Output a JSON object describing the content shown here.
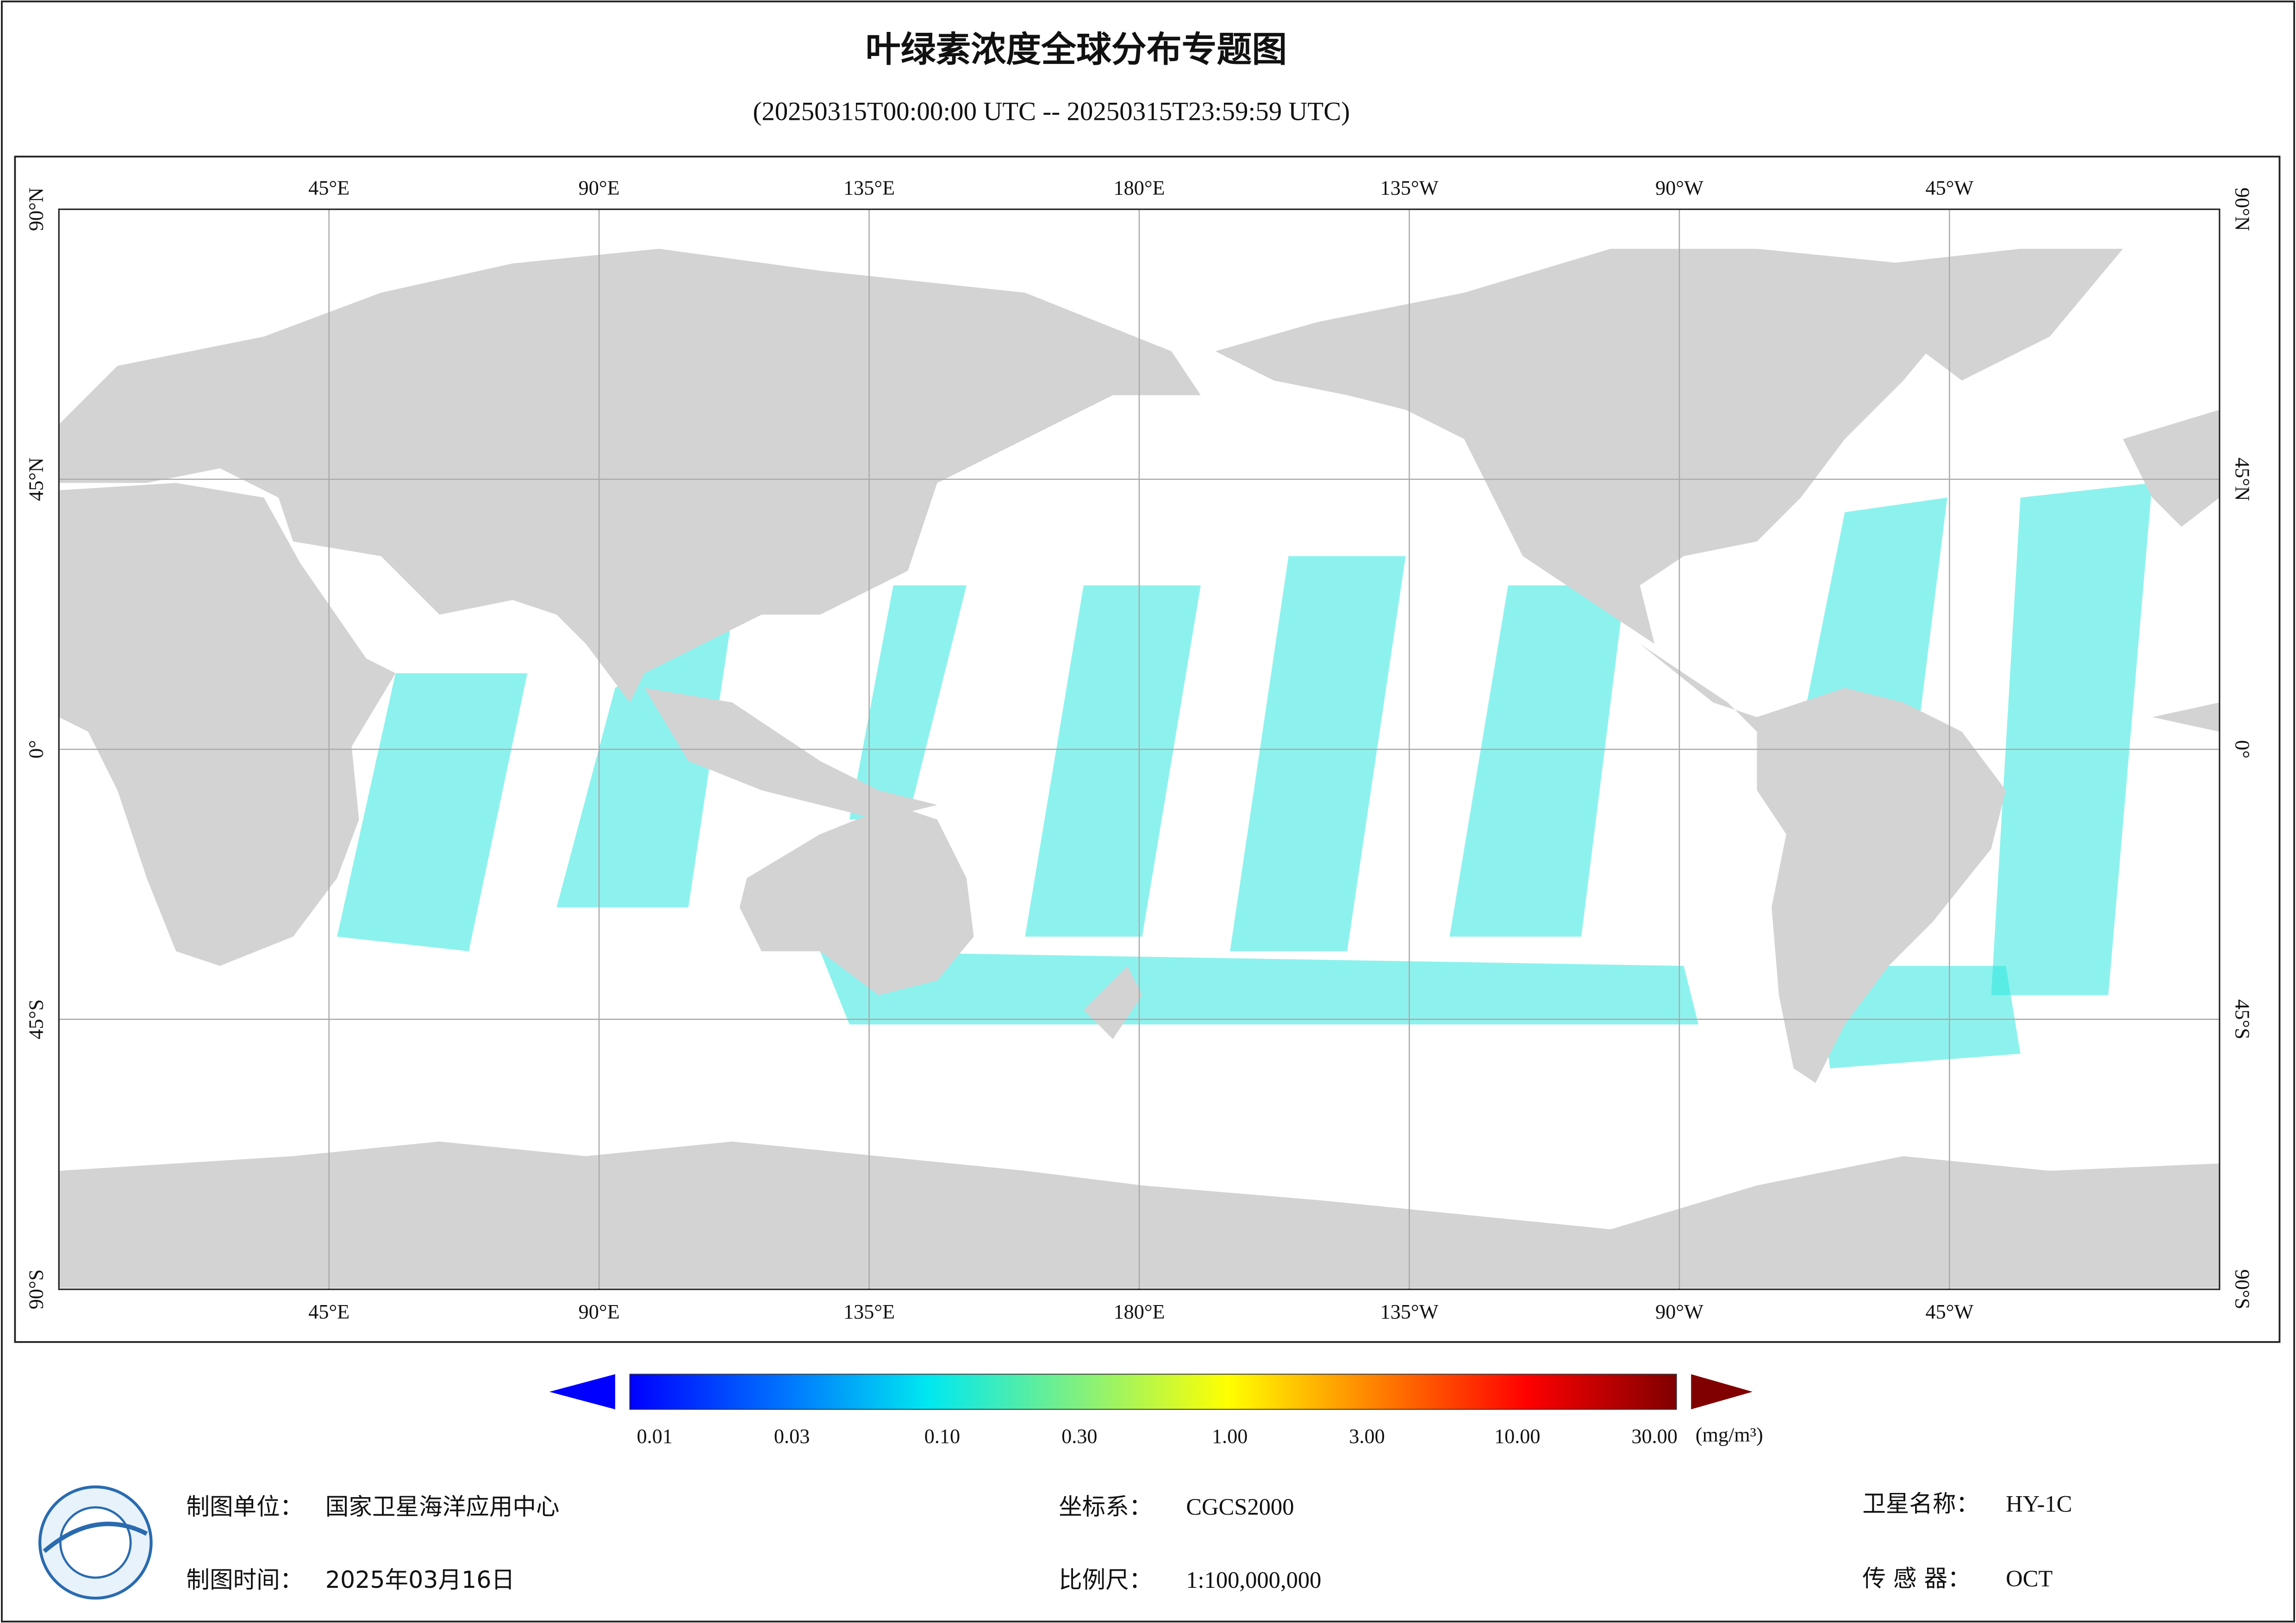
{
  "map": {
    "title": "叶绿素浓度全球分布专题图",
    "subtitle": "(20250315T00:00:00 UTC -- 20250315T23:59:59 UTC)",
    "xlim": [
      0,
      360
    ],
    "ylim": [
      -90,
      90
    ],
    "lon_ticks": [
      {
        "value": 45,
        "label": "45°E"
      },
      {
        "value": 90,
        "label": "90°E"
      },
      {
        "value": 135,
        "label": "135°E"
      },
      {
        "value": 180,
        "label": "180°E"
      },
      {
        "value": 225,
        "label": "135°W"
      },
      {
        "value": 270,
        "label": "90°W"
      },
      {
        "value": 315,
        "label": "45°W"
      }
    ],
    "lat_ticks": [
      {
        "value": 90,
        "label": "90°N"
      },
      {
        "value": 45,
        "label": "45°N"
      },
      {
        "value": 0,
        "label": "0°"
      },
      {
        "value": -45,
        "label": "45°S"
      },
      {
        "value": -90,
        "label": "90°S"
      }
    ],
    "grid": true,
    "colorbar": {
      "log": true,
      "range": [
        0.01,
        30
      ],
      "unit": "(mg/m³)",
      "colors": [
        "#0000ff",
        "#0070ff",
        "#00e8f0",
        "#80f080",
        "#ffff00",
        "#ff8000",
        "#ff0000",
        "#800000"
      ],
      "ticks": [
        0.01,
        0.03,
        {
          "value": 0.1,
          "label": "0.10"
        },
        {
          "value": 0.3,
          "label": "0.30"
        },
        {
          "value": 1,
          "label": "1.00"
        },
        {
          "value": 3,
          "label": "3.00"
        },
        {
          "value": 10,
          "label": "10.00"
        },
        {
          "value": 30,
          "label": "30.00"
        }
      ]
    }
  },
  "footer": {
    "unit": {
      "label": "制图单位：",
      "value": "国家卫星海洋应用中心"
    },
    "time": {
      "label": "制图时间：",
      "value": "2025年03月16日"
    },
    "crs": {
      "label": "坐标系：",
      "value": "CGCS2000"
    },
    "scale": {
      "label": "比例尺：",
      "value": "1:100,000,000"
    },
    "satellite": {
      "label": "卫星名称：",
      "value": "HY-1C"
    },
    "sensor": {
      "label": "传 感 器：",
      "value": "OCT"
    }
  }
}
